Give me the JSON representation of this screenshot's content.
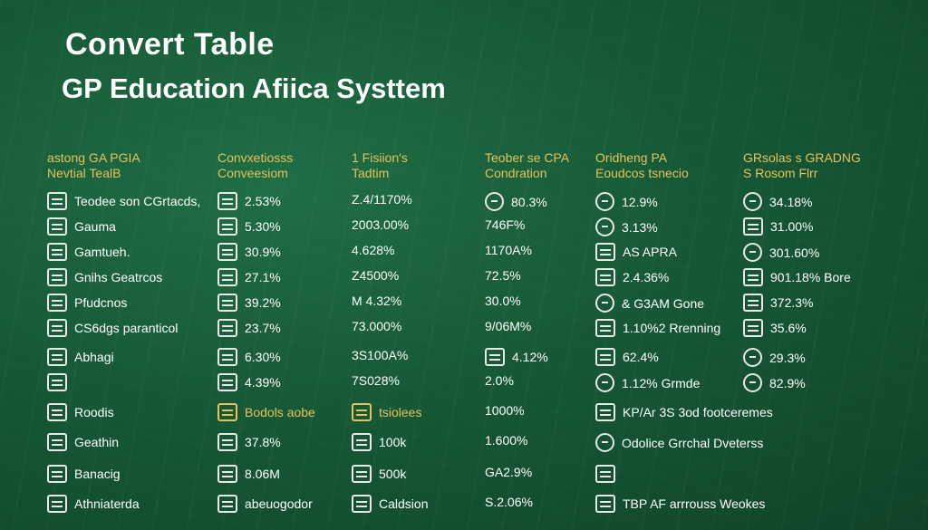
{
  "title": "Convert Table",
  "subtitle": "GP Education Afiica Systtem",
  "columns": [
    {
      "header": [
        "astong GA PGIA",
        "Nevtial TealB"
      ],
      "rows": [
        {
          "icon": "document-icon",
          "text": "Teodee son CGrtacds,"
        },
        {
          "icon": "document-icon",
          "text": "Gauma"
        },
        {
          "icon": "document-icon",
          "text": "Gamtueh."
        },
        {
          "icon": "document-icon",
          "text": "Gnihs Geatrcos"
        },
        {
          "icon": "document-icon",
          "text": "Pfudcnos"
        },
        {
          "icon": "document-icon",
          "text": "CS6dgs paranticol"
        },
        {
          "icon": "document-icon",
          "text": "Abhagi"
        },
        {
          "icon": "document-icon",
          "text": ""
        },
        {
          "icon": "document-icon",
          "text": "Roodis"
        },
        {
          "icon": "document-icon",
          "text": "Geathin"
        },
        {
          "icon": "document-icon",
          "text": "Banacig"
        },
        {
          "icon": "document-icon",
          "text": "Athniaterda"
        }
      ]
    },
    {
      "header": [
        "Convxetiosss",
        "Conveesiom"
      ],
      "rows": [
        {
          "icon": "chart-icon",
          "text": "2.53%"
        },
        {
          "icon": "chart-icon",
          "text": "5.30%"
        },
        {
          "icon": "chart-icon",
          "text": "30.9%"
        },
        {
          "icon": "chart-icon",
          "text": "27.1%"
        },
        {
          "icon": "chart-icon",
          "text": "39.2%"
        },
        {
          "icon": "chart-icon",
          "text": "23.7%"
        },
        {
          "icon": "chart-icon",
          "text": "6.30%"
        },
        {
          "icon": "chart-icon",
          "text": "4.39%"
        },
        {
          "icon": "document-icon",
          "text": "Bodols aobe",
          "gold": true
        },
        {
          "icon": "document-icon",
          "text": "37.8%"
        },
        {
          "icon": "document-icon",
          "text": "8.06M"
        },
        {
          "icon": "document-icon",
          "text": "abeuogodor"
        }
      ]
    },
    {
      "header": [
        "1 Fisiion's",
        "Tadtim"
      ],
      "rows": [
        {
          "icon": "",
          "text": "Z.4/1170%"
        },
        {
          "icon": "",
          "text": "2003.00%"
        },
        {
          "icon": "",
          "text": "4.628%"
        },
        {
          "icon": "",
          "text": "Z4500%"
        },
        {
          "icon": "",
          "text": "M 4.32%"
        },
        {
          "icon": "",
          "text": "73.000%"
        },
        {
          "icon": "",
          "text": "3S100A%"
        },
        {
          "icon": "",
          "text": "7S028%"
        },
        {
          "icon": "book-icon",
          "text": "tsiolees",
          "gold": true
        },
        {
          "icon": "book-icon",
          "text": "100k"
        },
        {
          "icon": "book-icon",
          "text": "500k"
        },
        {
          "icon": "book-icon",
          "text": "Caldsion"
        }
      ]
    },
    {
      "header": [
        "Teober se CPA",
        "Condration"
      ],
      "rows": [
        {
          "icon": "globe-icon",
          "text": "80.3%"
        },
        {
          "icon": "",
          "text": "746F%"
        },
        {
          "icon": "",
          "text": "1170A%"
        },
        {
          "icon": "",
          "text": "72.5%"
        },
        {
          "icon": "",
          "text": "30.0%"
        },
        {
          "icon": "",
          "text": "9/06M%"
        },
        {
          "icon": "chart-icon",
          "text": "4.12%"
        },
        {
          "icon": "",
          "text": "2.0%"
        },
        {
          "icon": "",
          "text": "1000%"
        },
        {
          "icon": "",
          "text": "1.600%"
        },
        {
          "icon": "",
          "text": "GA2.9%"
        },
        {
          "icon": "",
          "text": "S.2.06%"
        }
      ]
    },
    {
      "header": [
        "Oridheng PA",
        "Eoudcos tsnecio"
      ],
      "rows": [
        {
          "icon": "globe-icon",
          "text": "12.9%"
        },
        {
          "icon": "globe-icon",
          "text": "3.13%"
        },
        {
          "icon": "building-icon",
          "text": "AS APRA"
        },
        {
          "icon": "building-icon",
          "text": "2.4.36%"
        },
        {
          "icon": "globe-icon",
          "text": "& G3AM Gone"
        },
        {
          "icon": "chart-icon",
          "text": "1.10%2 Rrenning"
        },
        {
          "icon": "chart-icon",
          "text": "62.4%"
        },
        {
          "icon": "globe-icon",
          "text": "1.12% Grmde"
        },
        {
          "icon": "chart-icon",
          "text": "KP/Ar 3S 3od footceremes"
        },
        {
          "icon": "globe-icon",
          "text": "Odolice Grrchal Dveterss"
        },
        {
          "icon": "building-icon",
          "text": ""
        },
        {
          "icon": "building-icon",
          "text": "TBP AF arrrouss Weokes"
        }
      ]
    },
    {
      "header": [
        "GRsolas s GRADNG",
        "S Rosom Flrr"
      ],
      "rows": [
        {
          "icon": "globe-icon",
          "text": "34.18%"
        },
        {
          "icon": "building-icon",
          "text": "31.00%"
        },
        {
          "icon": "globe-icon",
          "text": "301.60%"
        },
        {
          "icon": "building-icon",
          "text": "901.18% Bore"
        },
        {
          "icon": "building-icon",
          "text": "372.3%"
        },
        {
          "icon": "building-icon",
          "text": "35.6%"
        },
        {
          "icon": "globe-icon",
          "text": "29.3%"
        },
        {
          "icon": "globe-icon",
          "text": "82.9%"
        }
      ]
    }
  ]
}
